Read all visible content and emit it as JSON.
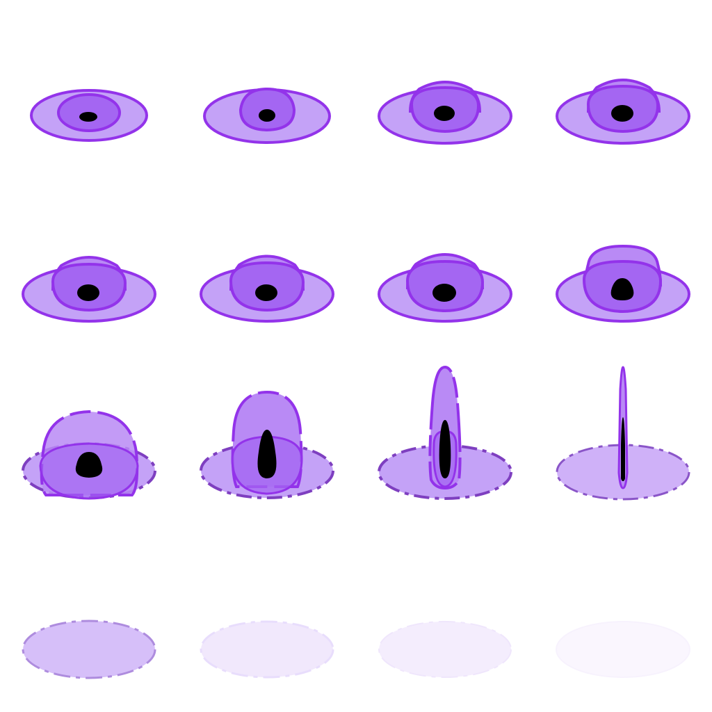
{
  "sheet": {
    "columns": 4,
    "rows": 4,
    "background_color": "#ffffff",
    "colors": {
      "outline": "#9333ea",
      "outline_dark": "#6b21a8",
      "disc_fill": "#c4a2f7",
      "dome_fill": "#b98af5",
      "core_fill": "#9f55f0",
      "pupil_fill": "#000000"
    }
  },
  "frames": [
    {
      "name": "frame-1",
      "row": 1,
      "disc_opacity": 1.0,
      "dashed": false,
      "dome_level": 0.1,
      "pupil": "small-oval"
    },
    {
      "name": "frame-2",
      "row": 1,
      "disc_opacity": 1.0,
      "dashed": false,
      "dome_level": 0.2,
      "pupil": "small-oval"
    },
    {
      "name": "frame-3",
      "row": 1,
      "disc_opacity": 1.0,
      "dashed": false,
      "dome_level": 0.35,
      "pupil": "oval"
    },
    {
      "name": "frame-4",
      "row": 1,
      "disc_opacity": 1.0,
      "dashed": false,
      "dome_level": 0.4,
      "pupil": "oval"
    },
    {
      "name": "frame-5",
      "row": 2,
      "disc_opacity": 1.0,
      "dashed": false,
      "dome_level": 0.45,
      "pupil": "oval"
    },
    {
      "name": "frame-6",
      "row": 2,
      "disc_opacity": 1.0,
      "dashed": false,
      "dome_level": 0.45,
      "pupil": "oval"
    },
    {
      "name": "frame-7",
      "row": 2,
      "disc_opacity": 1.0,
      "dashed": false,
      "dome_level": 0.5,
      "pupil": "oval"
    },
    {
      "name": "frame-8",
      "row": 2,
      "disc_opacity": 1.0,
      "dashed": false,
      "dome_level": 0.6,
      "pupil": "drop"
    },
    {
      "name": "frame-9",
      "row": 3,
      "disc_opacity": 0.85,
      "dashed": true,
      "dome_level": 0.7,
      "pupil": "drop"
    },
    {
      "name": "frame-10",
      "row": 3,
      "disc_opacity": 0.85,
      "dashed": true,
      "dome_level": 0.85,
      "pupil": "tall-drop"
    },
    {
      "name": "frame-11",
      "row": 3,
      "disc_opacity": 0.85,
      "dashed": true,
      "dome_level": 0.95,
      "pupil": "sliver"
    },
    {
      "name": "frame-12",
      "row": 3,
      "disc_opacity": 0.8,
      "dashed": true,
      "dome_level": 1.0,
      "pupil": "line"
    },
    {
      "name": "frame-13",
      "row": 4,
      "disc_opacity": 0.8,
      "dashed": true,
      "dome_level": 0.0,
      "pupil": "none"
    },
    {
      "name": "frame-14",
      "row": 4,
      "disc_opacity": 0.45,
      "dashed": true,
      "dome_level": 0.0,
      "pupil": "none"
    },
    {
      "name": "frame-15",
      "row": 4,
      "disc_opacity": 0.35,
      "dashed": true,
      "dome_level": 0.0,
      "pupil": "none"
    },
    {
      "name": "frame-16",
      "row": 4,
      "disc_opacity": 0.15,
      "dashed": true,
      "dome_level": 0.0,
      "pupil": "none"
    }
  ]
}
